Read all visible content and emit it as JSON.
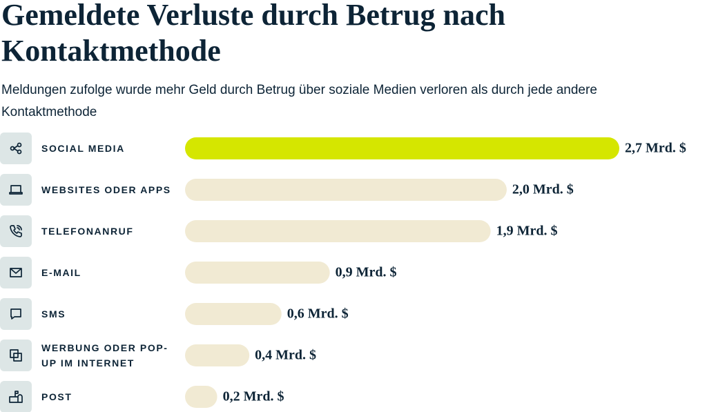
{
  "chart_data": {
    "type": "bar",
    "title": "Gemeldete Verluste durch Betrug nach Kontaktmethode",
    "subtitle": "Meldungen zufolge wurde mehr Geld durch Betrug über soziale Medien verloren als durch jede andere Kontaktmethode",
    "categories": [
      "SOCIAL MEDIA",
      "WEBSITES ODER APPS",
      "TELEFONANRUF",
      "E-MAIL",
      "SMS",
      "WERBUNG ODER POP-UP IM INTERNET",
      "POST"
    ],
    "values": [
      2.7,
      2.0,
      1.9,
      0.9,
      0.6,
      0.4,
      0.2
    ],
    "value_labels": [
      "2,7 Mrd. $",
      "2,0 Mrd. $",
      "1,9 Mrd. $",
      "0,9 Mrd. $",
      "0,6 Mrd. $",
      "0,4 Mrd. $",
      "0,2 Mrd. $"
    ],
    "colors": [
      "#d5e600",
      "#f1ead3",
      "#f1ead3",
      "#f1ead3",
      "#f1ead3",
      "#f1ead3",
      "#f1ead3"
    ]
  }
}
